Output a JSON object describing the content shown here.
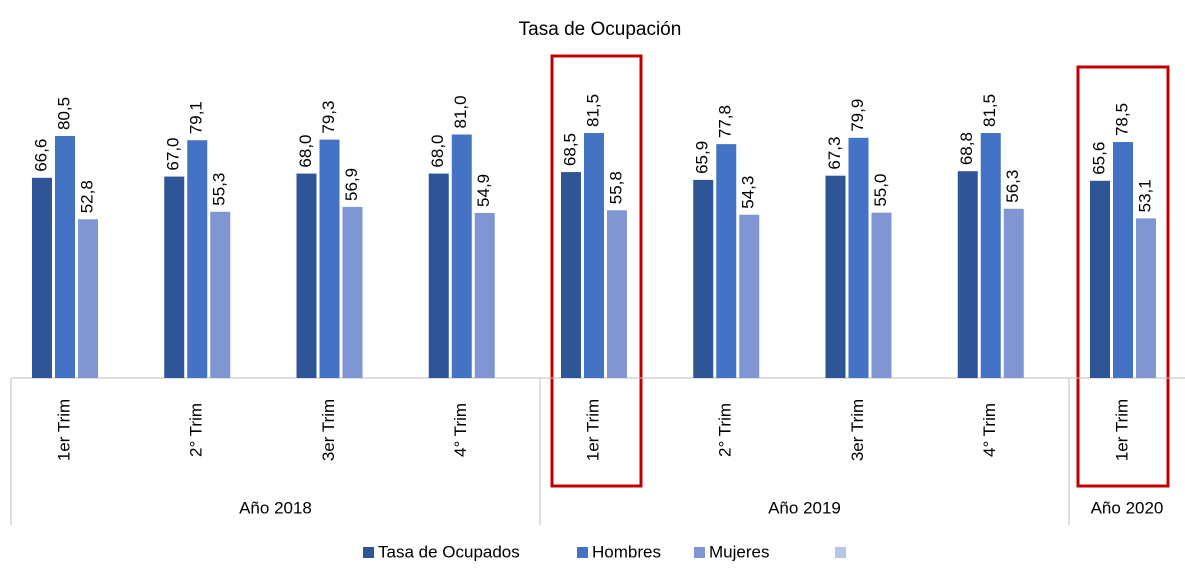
{
  "chart_data": {
    "type": "bar",
    "title": "Tasa de Ocupación",
    "categories": [
      "1er Trim",
      "2° Trim",
      "3er Trim",
      "4° Trim",
      "1er Trim",
      "2° Trim",
      "3er Trim",
      "4° Trim",
      "1er Trim"
    ],
    "groups": [
      {
        "name": "Año 2018",
        "size": 4
      },
      {
        "name": "Año 2019",
        "size": 4
      },
      {
        "name": "Año 2020",
        "size": 1
      }
    ],
    "series": [
      {
        "name": "Tasa de Ocupados",
        "color": "#2f5597",
        "values": [
          66.6,
          67.0,
          68.0,
          68.0,
          68.5,
          65.9,
          67.3,
          68.8,
          65.6
        ],
        "value_labels": [
          "66,6",
          "67,0",
          "68,0",
          "68,0",
          "68,5",
          "65,9",
          "67,3",
          "68,8",
          "65,6"
        ]
      },
      {
        "name": "Hombres",
        "color": "#4472c4",
        "values": [
          80.5,
          79.1,
          79.3,
          81.0,
          81.5,
          77.8,
          79.9,
          81.5,
          78.5
        ],
        "value_labels": [
          "80,5",
          "79,1",
          "79,3",
          "81,0",
          "81,5",
          "77,8",
          "79,9",
          "81,5",
          "78,5"
        ]
      },
      {
        "name": "Mujeres",
        "color": "#7f96d3",
        "values": [
          52.8,
          55.3,
          56.9,
          54.9,
          55.8,
          54.3,
          55.0,
          56.3,
          53.1
        ],
        "value_labels": [
          "52,8",
          "55,3",
          "56,9",
          "54,9",
          "55,8",
          "54,3",
          "55,0",
          "56,3",
          "53,1"
        ]
      }
    ],
    "legend": "bottom"
  }
}
